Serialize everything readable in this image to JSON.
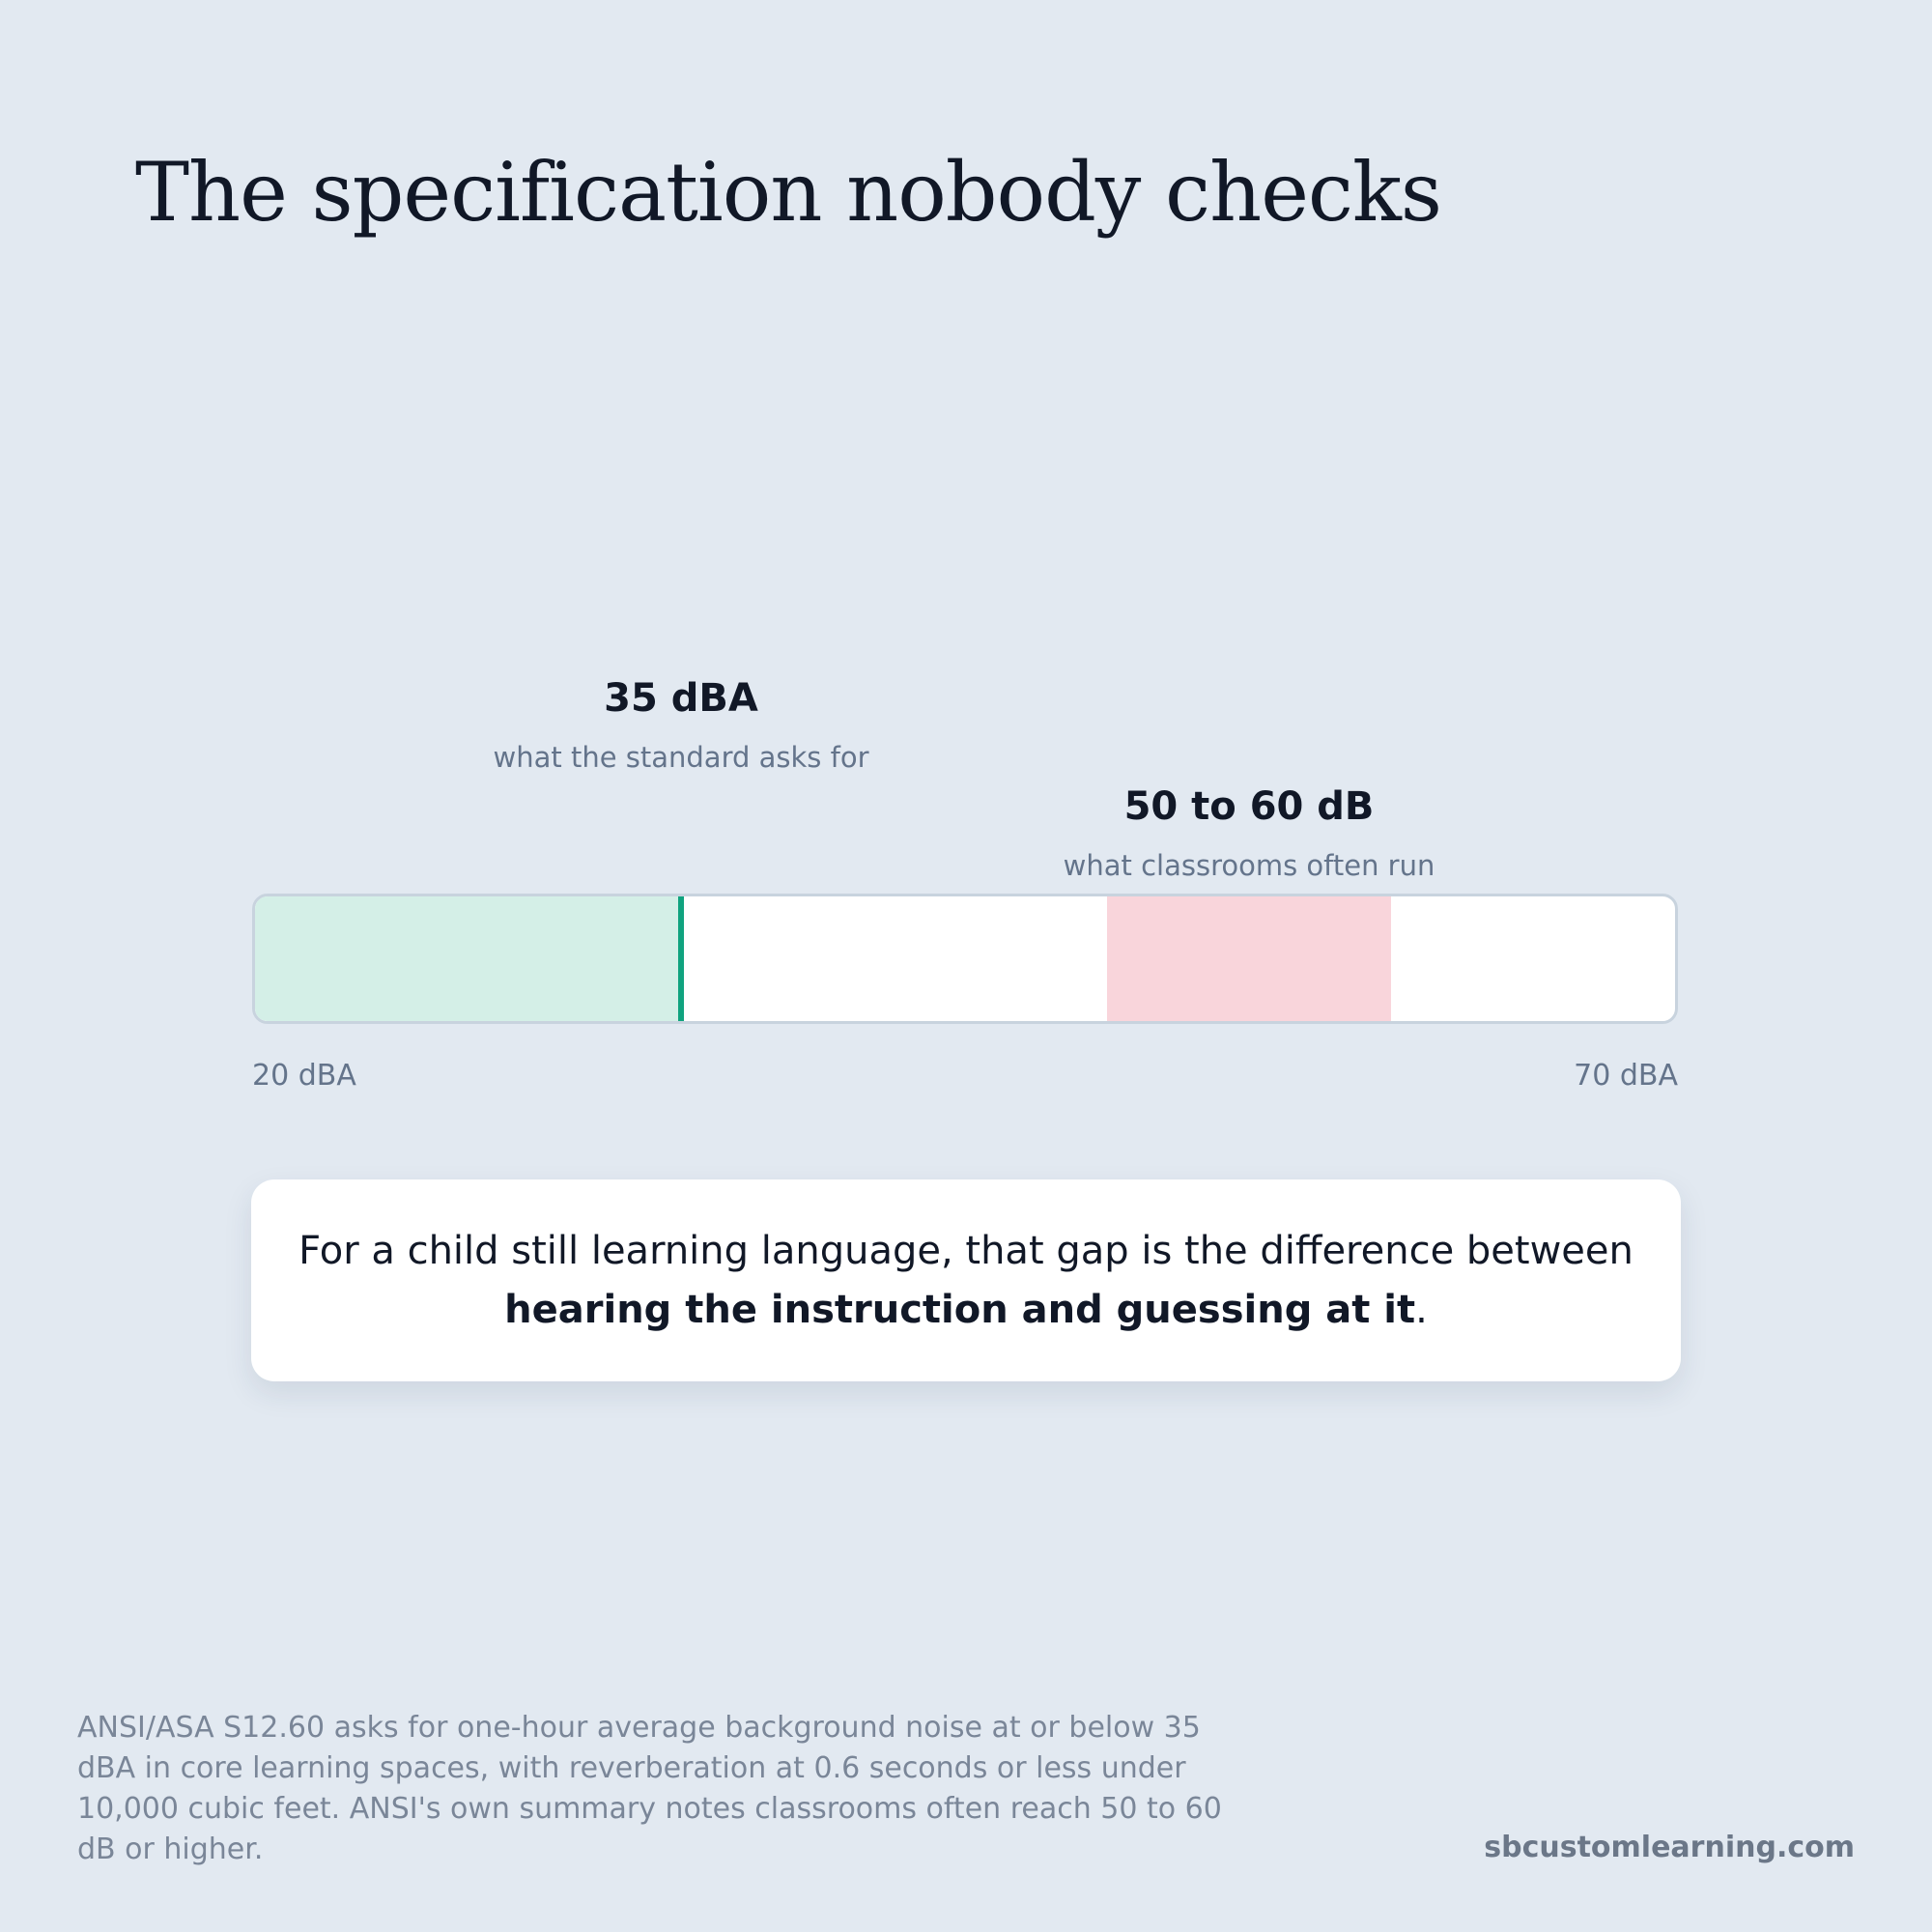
{
  "title": "The specification nobody checks",
  "scale": {
    "min": {
      "value": 20,
      "label": "20 dBA"
    },
    "max": {
      "value": 70,
      "label": "70 dBA"
    }
  },
  "marker": {
    "value": 35,
    "label": "35 dBA",
    "caption": "what the standard asks for",
    "color": "#10a37f",
    "fill": "#d4efe7"
  },
  "range": {
    "from": 50,
    "to": 60,
    "label": "50 to 60 dB",
    "caption": "what classrooms often run",
    "fill": "#f9d5db"
  },
  "callout": {
    "text_start": "For a child still learning language, that gap is the difference between",
    "text_bold": "hearing the instruction and guessing at it",
    "text_end": "."
  },
  "footnote": "ANSI/ASA S12.60 asks for one-hour average background noise at or below 35 dBA in core learning spaces, with reverberation at 0.6 seconds or less under 10,000 cubic feet. ANSI's own summary notes classrooms often reach 50 to 60 dB or higher.",
  "site": "sbcustomlearning.com"
}
